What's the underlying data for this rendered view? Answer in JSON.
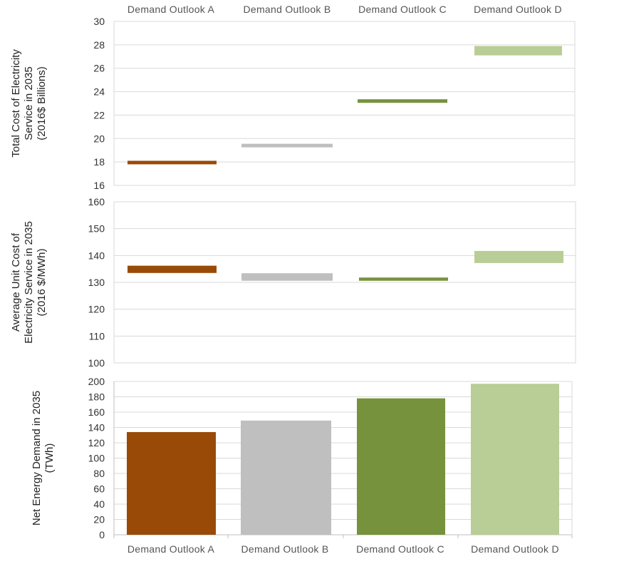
{
  "chart_data": [
    {
      "type": "range",
      "categories": [
        "Demand Outlook A",
        "Demand Outlook B",
        "Demand Outlook C",
        "Demand Outlook D"
      ],
      "ylabel": [
        "Total Cost of Electricity",
        "Service in 2035",
        "(2016$ Billions)"
      ],
      "ylim": [
        16,
        30
      ],
      "yticks": [
        16,
        18,
        20,
        22,
        24,
        26,
        28,
        30
      ],
      "ranges": [
        [
          17.8,
          18.1
        ],
        [
          19.3,
          19.5
        ],
        [
          23.1,
          23.3
        ],
        [
          27.1,
          27.9
        ]
      ],
      "colors": [
        "#9a4a07",
        "#bfbfbf",
        "#76923c",
        "#b9cd96"
      ],
      "grid": true,
      "category_axis": "top"
    },
    {
      "type": "range",
      "categories": [
        "Demand Outlook A",
        "Demand Outlook B",
        "Demand Outlook C",
        "Demand Outlook D"
      ],
      "ylabel": [
        "Average Unit Cost of",
        "Electricity Service in 2035",
        "(2016 $/MWh)"
      ],
      "ylim": [
        100,
        160
      ],
      "yticks": [
        100,
        110,
        120,
        130,
        140,
        150,
        160
      ],
      "ranges": [
        [
          133.5,
          136.2
        ],
        [
          130.6,
          133.4
        ],
        [
          130.6,
          131.8
        ],
        [
          137.2,
          141.7
        ]
      ],
      "colors": [
        "#9a4a07",
        "#bfbfbf",
        "#76923c",
        "#b9cd96"
      ],
      "grid": true
    },
    {
      "type": "bar",
      "categories": [
        "Demand Outlook A",
        "Demand Outlook B",
        "Demand Outlook C",
        "Demand Outlook D"
      ],
      "ylabel": [
        "Net Energy Demand in 2035",
        "(TWh)"
      ],
      "ylim": [
        0,
        200
      ],
      "yticks": [
        0,
        20,
        40,
        60,
        80,
        100,
        120,
        140,
        160,
        180,
        200
      ],
      "values": [
        134,
        149,
        178,
        197
      ],
      "colors": [
        "#9a4a07",
        "#bfbfbf",
        "#76923c",
        "#b9cd96"
      ],
      "grid": true,
      "category_axis": "bottom"
    }
  ]
}
